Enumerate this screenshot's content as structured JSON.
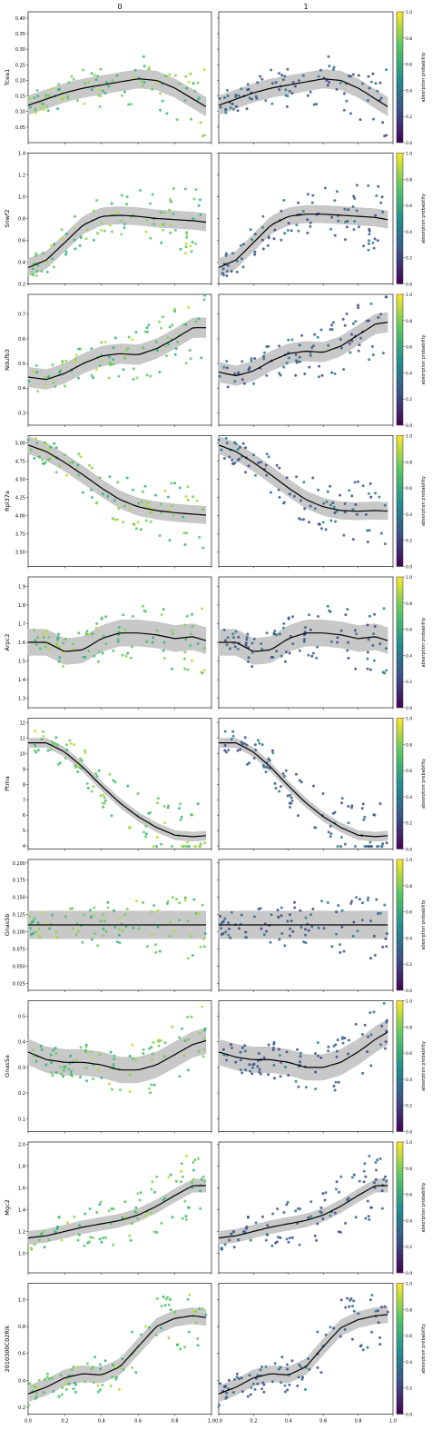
{
  "figure": {
    "columns": [
      "0",
      "1"
    ],
    "x_tick_labels": [
      "0.0",
      "0.2",
      "0.4",
      "0.6",
      "0.8",
      "1.0"
    ],
    "colorbar_label": "absorption probability",
    "colorbar_ticks": [
      "0.0",
      "0.2",
      "0.4",
      "0.6",
      "0.8",
      "1.0"
    ]
  },
  "chart_data": [
    {
      "type": "scatter",
      "gene": "Tcea1",
      "ylabel": "Tcea1",
      "ylim": [
        0.0,
        0.42
      ],
      "yticks": [
        "0.05",
        "0.10",
        "0.15",
        "0.20",
        "0.25",
        "0.30",
        "0.35",
        "0.40"
      ],
      "yvals": [
        0.05,
        0.1,
        0.15,
        0.2,
        0.25,
        0.3,
        0.35,
        0.4
      ],
      "trend": {
        "x": [
          0,
          0.1,
          0.2,
          0.3,
          0.4,
          0.5,
          0.6,
          0.7,
          0.8,
          0.9,
          1.0
        ],
        "y": [
          0.12,
          0.14,
          0.16,
          0.175,
          0.185,
          0.195,
          0.205,
          0.2,
          0.175,
          0.14,
          0.105
        ]
      },
      "band": 0.03
    },
    {
      "type": "scatter",
      "gene": "Snwf2",
      "ylabel": "Snwf2",
      "ylim": [
        0.2,
        1.4
      ],
      "yticks": [
        "0.2",
        "0.4",
        "0.6",
        "0.8",
        "1.0",
        "1.2",
        "1.4"
      ],
      "yvals": [
        0.2,
        0.4,
        0.6,
        0.8,
        1.0,
        1.2,
        1.4
      ],
      "trend": {
        "x": [
          0,
          0.1,
          0.2,
          0.3,
          0.4,
          0.5,
          0.6,
          0.7,
          0.8,
          0.9,
          1.0
        ],
        "y": [
          0.35,
          0.42,
          0.58,
          0.74,
          0.82,
          0.83,
          0.82,
          0.8,
          0.79,
          0.78,
          0.76
        ],
        "y2": [
          0.35,
          0.42,
          0.58,
          0.74,
          0.82,
          0.84,
          0.84,
          0.83,
          0.82,
          0.81,
          0.78
        ]
      },
      "band": 0.08
    },
    {
      "type": "scatter",
      "gene": "Ndufb3",
      "ylabel": "Ndufb3",
      "ylim": [
        0.25,
        0.78
      ],
      "yticks": [
        "0.3",
        "0.4",
        "0.5",
        "0.6",
        "0.7"
      ],
      "yvals": [
        0.3,
        0.4,
        0.5,
        0.6,
        0.7
      ],
      "trend": {
        "x": [
          0,
          0.1,
          0.2,
          0.3,
          0.4,
          0.5,
          0.6,
          0.7,
          0.8,
          0.9,
          1.0
        ],
        "y": [
          0.445,
          0.435,
          0.46,
          0.5,
          0.53,
          0.54,
          0.535,
          0.56,
          0.6,
          0.645,
          0.645
        ],
        "y2": [
          0.465,
          0.45,
          0.47,
          0.51,
          0.54,
          0.55,
          0.545,
          0.57,
          0.615,
          0.66,
          0.67
        ]
      },
      "band": 0.04
    },
    {
      "type": "scatter",
      "gene": "Rpl37a",
      "ylabel": "Rpl37a",
      "ylim": [
        3.3,
        5.1
      ],
      "yticks": [
        "3.50",
        "3.75",
        "4.00",
        "4.25",
        "4.50",
        "4.75",
        "5.00"
      ],
      "yvals": [
        3.5,
        3.75,
        4.0,
        4.25,
        4.5,
        4.75,
        5.0
      ],
      "trend": {
        "x": [
          0,
          0.1,
          0.2,
          0.3,
          0.4,
          0.5,
          0.6,
          0.7,
          0.8,
          0.9,
          1.0
        ],
        "y": [
          4.97,
          4.88,
          4.73,
          4.56,
          4.38,
          4.22,
          4.12,
          4.07,
          4.04,
          4.02,
          4.0
        ],
        "y2": [
          4.97,
          4.88,
          4.73,
          4.56,
          4.38,
          4.22,
          4.12,
          4.07,
          4.06,
          4.07,
          4.06
        ]
      },
      "band": 0.12
    },
    {
      "type": "scatter",
      "gene": "Arpc2",
      "ylabel": "Arpc2",
      "ylim": [
        1.25,
        1.95
      ],
      "yticks": [
        "1.3",
        "1.4",
        "1.5",
        "1.6",
        "1.7",
        "1.8",
        "1.9"
      ],
      "yvals": [
        1.3,
        1.4,
        1.5,
        1.6,
        1.7,
        1.8,
        1.9
      ],
      "trend": {
        "x": [
          0,
          0.1,
          0.2,
          0.3,
          0.4,
          0.5,
          0.6,
          0.7,
          0.8,
          0.9,
          1.0
        ],
        "y": [
          1.6,
          1.6,
          1.55,
          1.56,
          1.62,
          1.65,
          1.65,
          1.64,
          1.62,
          1.63,
          1.6
        ]
      },
      "band": 0.07
    },
    {
      "type": "scatter",
      "gene": "Ptma",
      "ylabel": "Ptma",
      "ylim": [
        3.8,
        12.3
      ],
      "yticks": [
        "4",
        "5",
        "6",
        "7",
        "8",
        "9",
        "10",
        "11",
        "12"
      ],
      "yvals": [
        4,
        5,
        6,
        7,
        8,
        9,
        10,
        11,
        12
      ],
      "trend": {
        "x": [
          0,
          0.1,
          0.2,
          0.3,
          0.4,
          0.5,
          0.6,
          0.7,
          0.8,
          0.9,
          1.0
        ],
        "y": [
          10.7,
          10.7,
          10.1,
          9.1,
          7.9,
          6.8,
          5.9,
          5.2,
          4.7,
          4.6,
          4.7
        ]
      },
      "band": 0.3
    },
    {
      "type": "scatter",
      "gene": "Gnas5b",
      "ylabel": "Gnas5b",
      "ylim": [
        0.015,
        0.205
      ],
      "yticks": [
        "0.025",
        "0.050",
        "0.075",
        "0.100",
        "0.125",
        "0.150",
        "0.175",
        "0.200"
      ],
      "yvals": [
        0.025,
        0.05,
        0.075,
        0.1,
        0.125,
        0.15,
        0.175,
        0.2
      ],
      "trend": {
        "x": [
          0,
          1.0
        ],
        "y": [
          0.11,
          0.11
        ]
      },
      "band": 0.02
    },
    {
      "type": "scatter",
      "gene": "Gnas5a",
      "ylabel": "Gnas5a",
      "ylim": [
        0.05,
        0.56
      ],
      "yticks": [
        "0.1",
        "0.2",
        "0.3",
        "0.4",
        "0.5"
      ],
      "yvals": [
        0.1,
        0.2,
        0.3,
        0.4,
        0.5
      ],
      "trend": {
        "x": [
          0,
          0.1,
          0.2,
          0.3,
          0.4,
          0.5,
          0.6,
          0.7,
          0.8,
          0.9,
          1.0
        ],
        "y": [
          0.36,
          0.33,
          0.32,
          0.32,
          0.31,
          0.29,
          0.29,
          0.31,
          0.35,
          0.39,
          0.41
        ],
        "y2": [
          0.36,
          0.34,
          0.33,
          0.33,
          0.32,
          0.3,
          0.3,
          0.32,
          0.36,
          0.41,
          0.45
        ]
      },
      "band": 0.05
    },
    {
      "type": "scatter",
      "gene": "Mgc2",
      "ylabel": "Mgc2",
      "ylim": [
        0.82,
        2.02
      ],
      "yticks": [
        "1.0",
        "1.2",
        "1.4",
        "1.6",
        "1.8",
        "2.0"
      ],
      "yvals": [
        1.0,
        1.2,
        1.4,
        1.6,
        1.8,
        2.0
      ],
      "trend": {
        "x": [
          0,
          0.1,
          0.2,
          0.3,
          0.4,
          0.5,
          0.6,
          0.7,
          0.8,
          0.9,
          1.0
        ],
        "y": [
          1.14,
          1.16,
          1.2,
          1.24,
          1.27,
          1.3,
          1.35,
          1.43,
          1.53,
          1.62,
          1.62
        ]
      },
      "band": 0.06
    },
    {
      "type": "scatter",
      "gene": "2010300C02Rik",
      "ylabel": "2010300C02Rik",
      "ylim": [
        0.15,
        1.12
      ],
      "yticks": [
        "0.2",
        "0.4",
        "0.6",
        "0.8",
        "1.0"
      ],
      "yvals": [
        0.2,
        0.4,
        0.6,
        0.8,
        1.0
      ],
      "trend": {
        "x": [
          0,
          0.1,
          0.2,
          0.3,
          0.4,
          0.5,
          0.6,
          0.7,
          0.8,
          0.9,
          1.0
        ],
        "y": [
          0.3,
          0.35,
          0.42,
          0.45,
          0.44,
          0.5,
          0.65,
          0.8,
          0.86,
          0.88,
          0.86
        ],
        "y2": [
          0.3,
          0.35,
          0.42,
          0.45,
          0.44,
          0.5,
          0.65,
          0.79,
          0.85,
          0.88,
          0.89
        ]
      },
      "band": 0.06
    }
  ]
}
